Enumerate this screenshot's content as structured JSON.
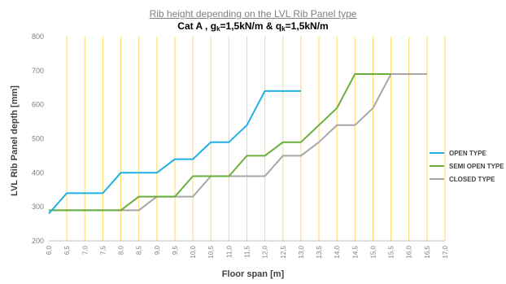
{
  "chart_data": {
    "type": "line",
    "title": "Rib height depending on the LVL Rib Panel type",
    "subtitle": {
      "prefix": "Cat A , g",
      "g_sub": "k",
      "middle": "=1,5kN/m & q",
      "q_sub": "k",
      "suffix": "=1,5kN/m"
    },
    "xlabel": "Floor span [m]",
    "ylabel": "LVL Rib Panel depth [mm]",
    "xlim": [
      6.0,
      17.0
    ],
    "ylim": [
      200,
      800
    ],
    "x_ticks": [
      "6,0",
      "6,5",
      "7,0",
      "7,5",
      "8,0",
      "8,5",
      "9,0",
      "9,5",
      "10,0",
      "10,5",
      "11,0",
      "11,5",
      "12,0",
      "12,5",
      "13,0",
      "13,5",
      "14,0",
      "14,5",
      "15,0",
      "15,5",
      "16,0",
      "16,5",
      "17,0"
    ],
    "y_ticks": [
      "200",
      "300",
      "400",
      "500",
      "600",
      "700",
      "800"
    ],
    "grid": "vertical",
    "legend_position": "right",
    "series": [
      {
        "name": "OPEN TYPE",
        "color": "#1fb0e4",
        "x": [
          6.0,
          6.5,
          7.0,
          7.5,
          8.0,
          8.5,
          9.0,
          9.5,
          10.0,
          10.5,
          11.0,
          11.5,
          12.0,
          12.5,
          13.0
        ],
        "y": [
          280,
          340,
          340,
          340,
          400,
          400,
          400,
          440,
          440,
          490,
          490,
          540,
          640,
          640,
          640
        ]
      },
      {
        "name": "SEMI OPEN TYPE",
        "color": "#6aae3b",
        "x": [
          6.0,
          6.5,
          7.0,
          7.5,
          8.0,
          8.5,
          9.0,
          9.5,
          10.0,
          10.5,
          11.0,
          11.5,
          12.0,
          12.5,
          13.0,
          13.5,
          14.0,
          14.5,
          15.0,
          15.5
        ],
        "y": [
          290,
          290,
          290,
          290,
          290,
          330,
          330,
          330,
          390,
          390,
          390,
          450,
          450,
          490,
          490,
          540,
          590,
          690,
          690,
          690
        ]
      },
      {
        "name": "CLOSED TYPE",
        "color": "#a6a6a6",
        "x": [
          6.0,
          6.5,
          7.0,
          7.5,
          8.0,
          8.5,
          9.0,
          9.5,
          10.0,
          10.5,
          11.0,
          11.5,
          12.0,
          12.5,
          13.0,
          13.5,
          14.0,
          14.5,
          15.0,
          15.5,
          16.0,
          16.5
        ],
        "y": [
          290,
          290,
          290,
          290,
          290,
          290,
          330,
          330,
          330,
          390,
          390,
          390,
          390,
          450,
          450,
          490,
          540,
          540,
          590,
          690,
          690,
          690
        ]
      }
    ],
    "colors": {
      "gridline": "#ffd966",
      "tick_label": "#7f7f7f",
      "axis": "#bfbfbf"
    }
  }
}
